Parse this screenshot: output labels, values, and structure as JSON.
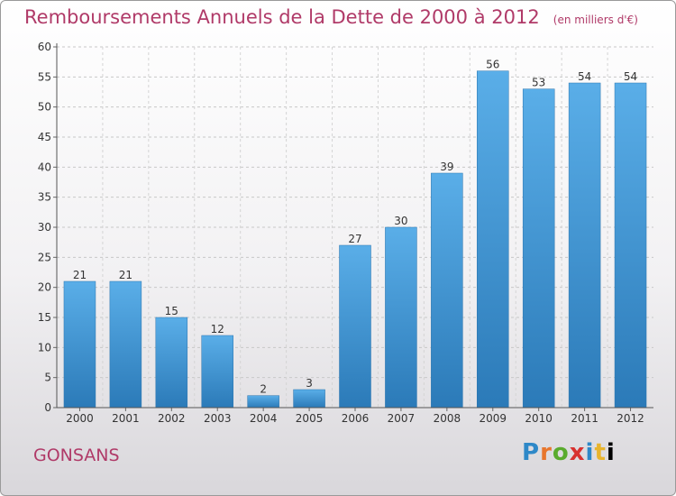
{
  "title": "Remboursements Annuels de la Dette de 2000 à 2012",
  "unit": "(en milliers d'€)",
  "commune": "GONSANS",
  "logo_text": "Proxiti",
  "colors": {
    "title": "#b03a68",
    "bar_light": "#5aaee8",
    "bar_dark": "#2b7ab8",
    "logo": [
      "#2e88c8",
      "#e8762d",
      "#5aab2e",
      "#d8312f",
      "#2e88c8",
      "#e8b42d"
    ]
  },
  "chart_data": {
    "type": "bar",
    "title": "Remboursements Annuels de la Dette de 2000 à 2012",
    "xlabel": "",
    "ylabel": "",
    "categories": [
      "2000",
      "2001",
      "2002",
      "2003",
      "2004",
      "2005",
      "2006",
      "2007",
      "2008",
      "2009",
      "2010",
      "2011",
      "2012"
    ],
    "values": [
      21,
      21,
      15,
      12,
      2,
      3,
      27,
      30,
      39,
      56,
      53,
      54,
      54
    ],
    "ylim": [
      0,
      60
    ],
    "yticks": [
      0,
      5,
      10,
      15,
      20,
      25,
      30,
      35,
      40,
      45,
      50,
      55,
      60
    ],
    "grid": true,
    "data_labels": true
  }
}
